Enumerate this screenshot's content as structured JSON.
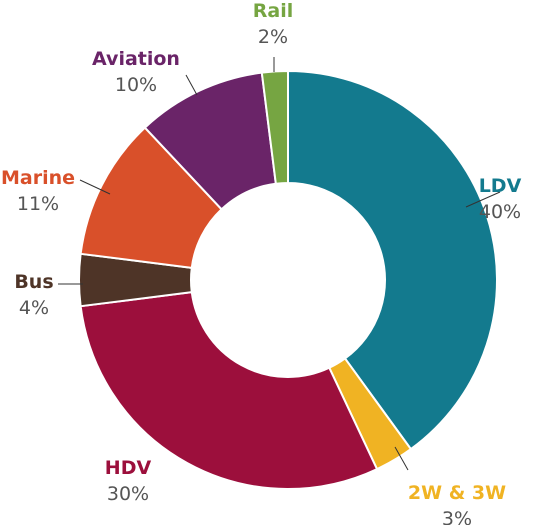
{
  "chart_data": {
    "type": "pie",
    "variant": "donut",
    "title": "",
    "slices": [
      {
        "label": "LDV",
        "value": 40,
        "display": "40%",
        "color": "#137A8E"
      },
      {
        "label": "2W & 3W",
        "value": 3,
        "display": "3%",
        "color": "#F0B323"
      },
      {
        "label": "HDV",
        "value": 30,
        "display": "30%",
        "color": "#9C0F3C"
      },
      {
        "label": "Bus",
        "value": 4,
        "display": "4%",
        "color": "#4E3427"
      },
      {
        "label": "Marine",
        "value": 11,
        "display": "11%",
        "color": "#D9502A"
      },
      {
        "label": "Aviation",
        "value": 10,
        "display": "10%",
        "color": "#6A2468"
      },
      {
        "label": "Rail",
        "value": 2,
        "display": "2%",
        "color": "#76A542"
      }
    ],
    "start_angle": "top",
    "direction": "clockwise",
    "legend": "none",
    "data_labels": "outside with leader lines"
  }
}
